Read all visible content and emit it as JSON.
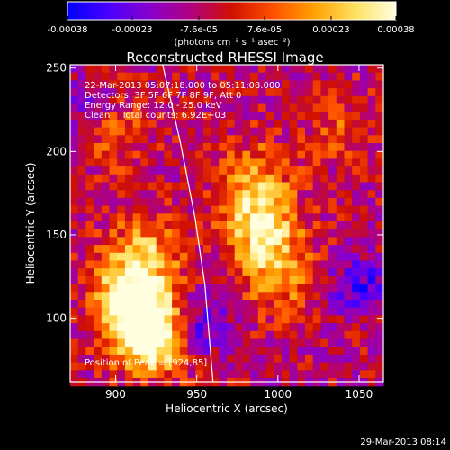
{
  "chart_data": {
    "type": "heatmap",
    "title": "Reconstructed RHESSI Image",
    "xlabel": "Heliocentric X (arcsec)",
    "ylabel": "Heliocentric Y (arcsec)",
    "xlim": [
      872,
      1065
    ],
    "ylim": [
      62,
      252
    ],
    "xticks": [
      900,
      950,
      1000,
      1050
    ],
    "yticks": [
      100,
      150,
      200,
      250
    ],
    "colorbar": {
      "ticks": [
        "-0.00038",
        "-0.00023",
        "-7.6e-05",
        "7.6e-05",
        "0.00023",
        "0.00038"
      ],
      "tick_values": [
        -0.00038,
        -0.00023,
        -7.6e-05,
        7.6e-05,
        0.00023,
        0.00038
      ],
      "range": [
        -0.00038,
        0.00038
      ],
      "units_label": "(photons cm⁻² s⁻¹ asec⁻²)",
      "colormap": [
        "#0000ff",
        "#4a00ff",
        "#8800cc",
        "#b00080",
        "#d01000",
        "#ff5000",
        "#ffa000",
        "#ffe060",
        "#ffffe0"
      ]
    },
    "annotations": [
      "22-Mar-2013 05:07:18.000 to 05:11:08.000",
      "Detectors: 3F 5F 6F 7F 8F 9F, Att 0",
      "Energy Range: 12.0 - 25.0 keV",
      "Clean    Total counts: 6.92E+03"
    ],
    "peak_label": "Position of Peak = [924,85]",
    "limb_curve": [
      [
        929,
        252
      ],
      [
        940,
        205
      ],
      [
        949,
        160
      ],
      [
        955,
        120
      ],
      [
        960,
        62
      ]
    ],
    "hot_spots": [
      {
        "x": 915,
        "y": 100,
        "w": 1.0
      },
      {
        "x": 924,
        "y": 88,
        "w": 0.9
      },
      {
        "x": 905,
        "y": 120,
        "w": 0.6
      },
      {
        "x": 920,
        "y": 140,
        "w": 0.55
      },
      {
        "x": 990,
        "y": 155,
        "w": 0.9
      },
      {
        "x": 1000,
        "y": 125,
        "w": 0.55
      },
      {
        "x": 985,
        "y": 185,
        "w": 0.5
      },
      {
        "x": 900,
        "y": 210,
        "w": 0.35
      },
      {
        "x": 1040,
        "y": 215,
        "w": 0.3
      }
    ],
    "cool_spots": [
      {
        "x": 950,
        "y": 95,
        "w": 0.9
      },
      {
        "x": 1050,
        "y": 120,
        "w": 0.8
      },
      {
        "x": 880,
        "y": 225,
        "w": 0.5
      }
    ]
  },
  "footer": {
    "timestamp": "29-Mar-2013 08:14"
  }
}
